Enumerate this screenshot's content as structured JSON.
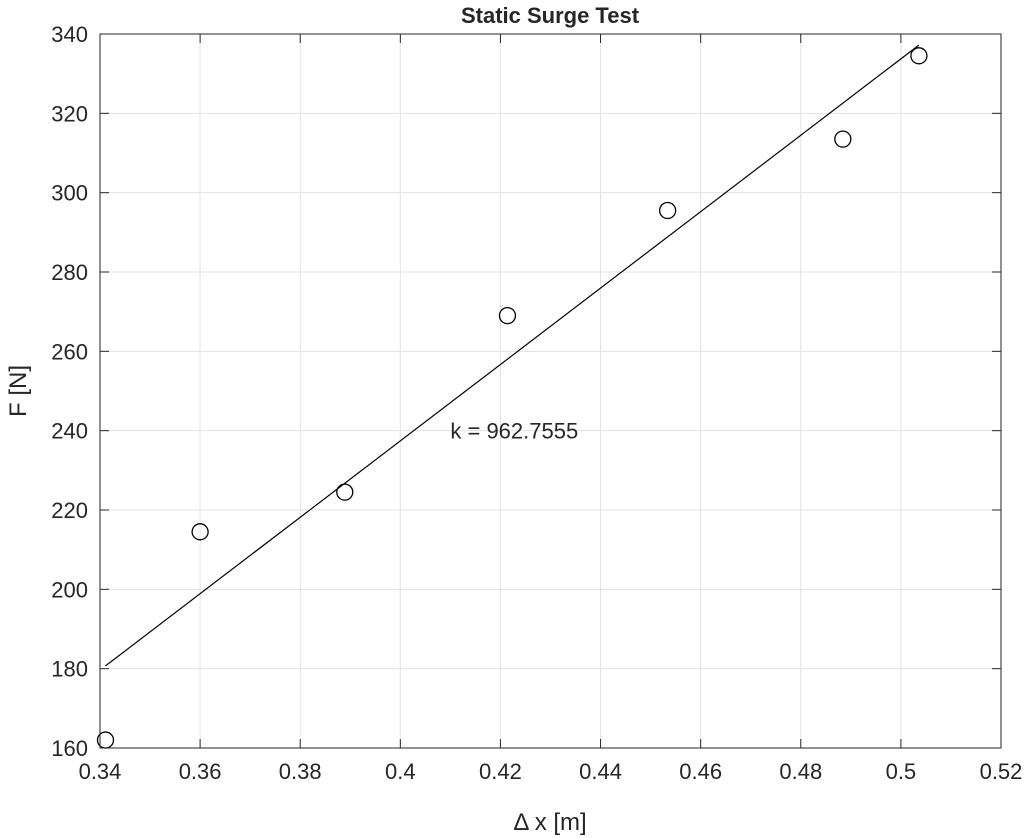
{
  "chart_data": {
    "type": "scatter",
    "title": "Static Surge Test",
    "xlabel": "Δ x [m]",
    "ylabel": "F [N]",
    "xlim": [
      0.34,
      0.52
    ],
    "ylim": [
      160,
      340
    ],
    "xticks": [
      "0.34",
      "0.36",
      "0.38",
      "0.4",
      "0.42",
      "0.44",
      "0.46",
      "0.48",
      "0.5",
      "0.52"
    ],
    "yticks": [
      "160",
      "180",
      "200",
      "220",
      "240",
      "260",
      "280",
      "300",
      "320",
      "340"
    ],
    "grid": true,
    "points": [
      {
        "x": 0.3411,
        "y": 162.0
      },
      {
        "x": 0.36,
        "y": 214.5
      },
      {
        "x": 0.3889,
        "y": 224.5
      },
      {
        "x": 0.4214,
        "y": 269.0
      },
      {
        "x": 0.4534,
        "y": 295.5
      },
      {
        "x": 0.4884,
        "y": 313.5
      },
      {
        "x": 0.5036,
        "y": 334.5
      }
    ],
    "fit_line": {
      "x": [
        0.3411,
        0.5036
      ],
      "y": [
        180.7,
        337.2
      ]
    },
    "annotation": {
      "text": "k = 962.7555",
      "x": 0.41,
      "y": 240
    }
  }
}
